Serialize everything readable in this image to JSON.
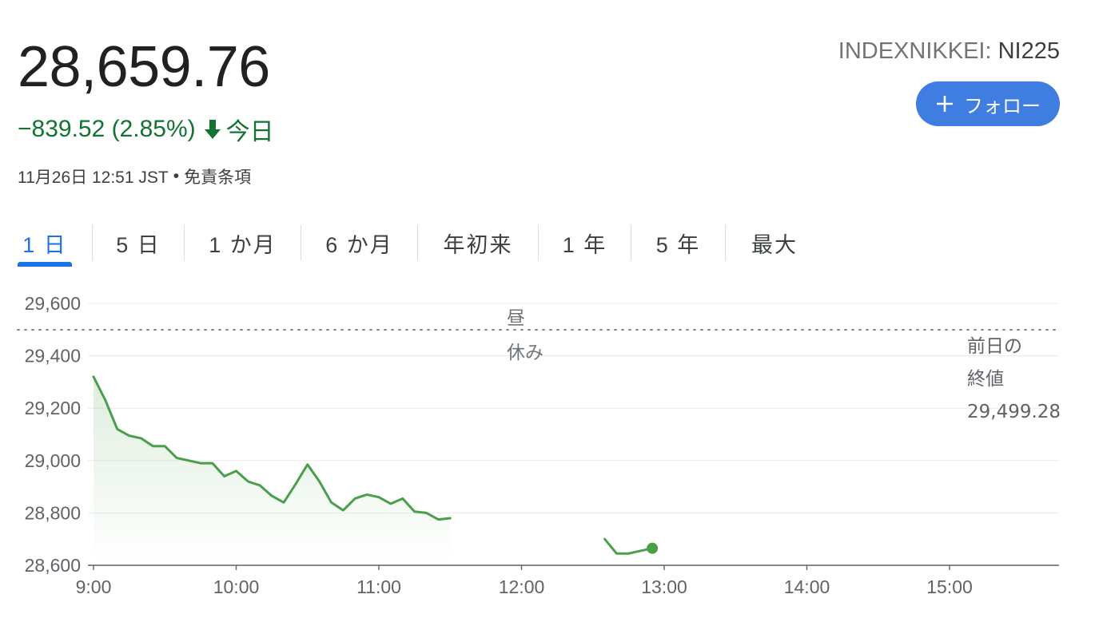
{
  "quote": {
    "price": "28,659.76",
    "change": "−839.52 (2.85%)",
    "period": "今日",
    "timestamp": "11月26日 12:51 JST",
    "separator": "•",
    "disclaimer": "免責条項"
  },
  "ticker": {
    "exchange": "INDEXNIKKEI:",
    "symbol": "NI225"
  },
  "follow": {
    "label": "フォロー"
  },
  "tabs": [
    {
      "label": "1 日",
      "active": true
    },
    {
      "label": "5 日"
    },
    {
      "label": "1 か月"
    },
    {
      "label": "6 か月"
    },
    {
      "label": "年初来"
    },
    {
      "label": "1 年"
    },
    {
      "label": "5 年"
    },
    {
      "label": "最大"
    }
  ],
  "colors": {
    "line": "#4a9f4a",
    "negative": "#137333",
    "accent": "#1a73e8",
    "button": "#3f7de0"
  },
  "chart_data": {
    "type": "line",
    "ylim": [
      28600,
      29600
    ],
    "yticks": [
      "29,600",
      "29,400",
      "29,200",
      "29,000",
      "28,800",
      "28,600"
    ],
    "xticks": [
      "9:00",
      "10:00",
      "11:00",
      "12:00",
      "13:00",
      "14:00",
      "15:00"
    ],
    "previous_close": {
      "value": 29499.28,
      "label_line1": "前日の",
      "label_line2": "終値",
      "label_value": "29,499.28"
    },
    "lunch_break": {
      "line1": "昼",
      "line2": "休み"
    },
    "series": [
      {
        "segment": "morning",
        "points": [
          [
            "9:00",
            29320
          ],
          [
            "9:05",
            29230
          ],
          [
            "9:10",
            29120
          ],
          [
            "9:15",
            29095
          ],
          [
            "9:20",
            29085
          ],
          [
            "9:25",
            29055
          ],
          [
            "9:30",
            29055
          ],
          [
            "9:35",
            29010
          ],
          [
            "9:40",
            29000
          ],
          [
            "9:45",
            28990
          ],
          [
            "9:50",
            28990
          ],
          [
            "9:55",
            28940
          ],
          [
            "10:00",
            28960
          ],
          [
            "10:05",
            28920
          ],
          [
            "10:10",
            28905
          ],
          [
            "10:15",
            28865
          ],
          [
            "10:20",
            28840
          ],
          [
            "10:25",
            28910
          ],
          [
            "10:30",
            28985
          ],
          [
            "10:35",
            28920
          ],
          [
            "10:40",
            28840
          ],
          [
            "10:45",
            28810
          ],
          [
            "10:50",
            28855
          ],
          [
            "10:55",
            28870
          ],
          [
            "11:00",
            28860
          ],
          [
            "11:05",
            28835
          ],
          [
            "11:10",
            28855
          ],
          [
            "11:15",
            28805
          ],
          [
            "11:20",
            28800
          ],
          [
            "11:25",
            28775
          ],
          [
            "11:30",
            28780
          ]
        ]
      },
      {
        "segment": "afternoon",
        "points": [
          [
            "12:35",
            28700
          ],
          [
            "12:40",
            28645
          ],
          [
            "12:45",
            28645
          ],
          [
            "12:50",
            28655
          ],
          [
            "12:55",
            28665
          ]
        ]
      }
    ],
    "last_point": [
      "12:55",
      28665
    ]
  }
}
